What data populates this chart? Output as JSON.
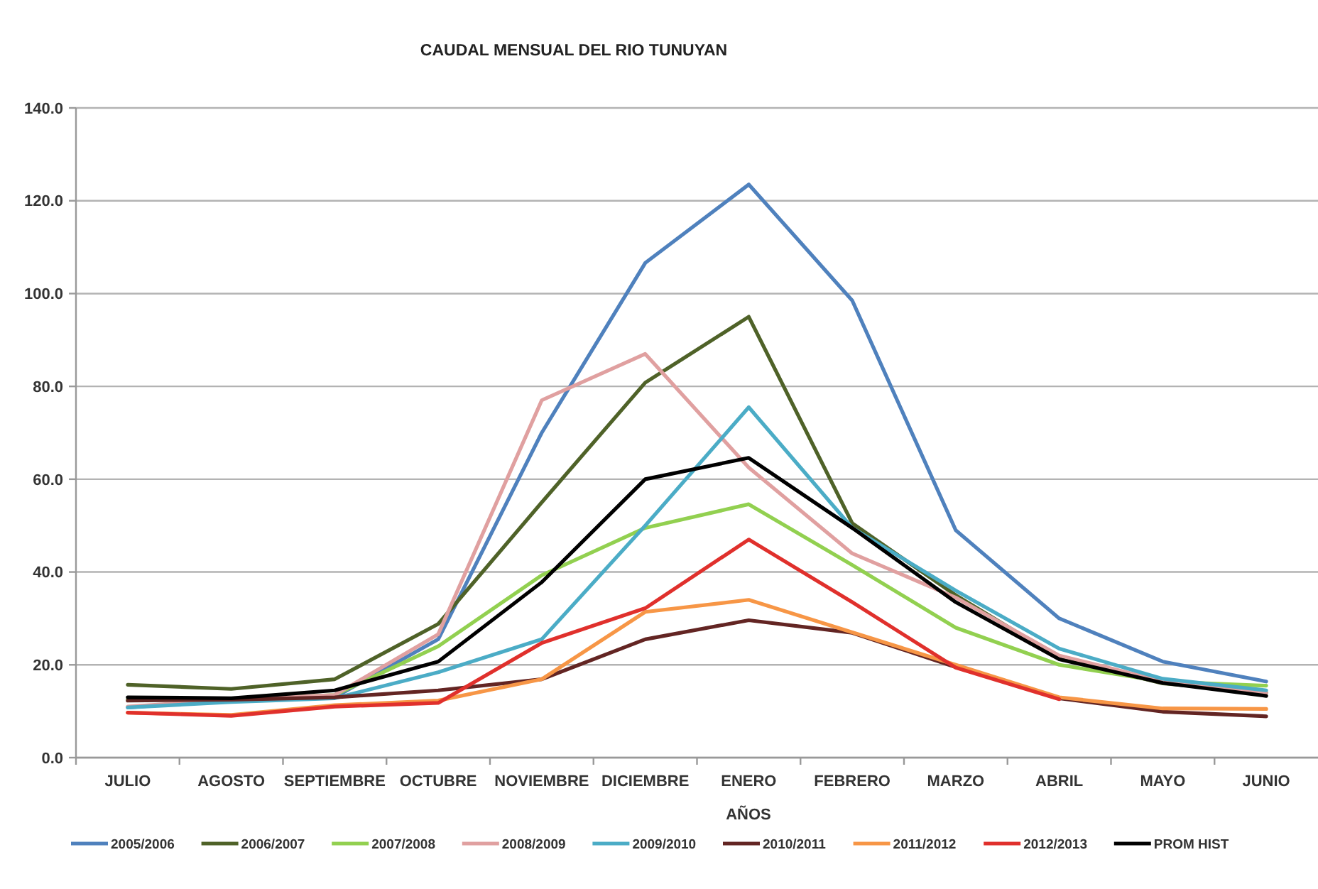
{
  "chart_data": {
    "type": "line",
    "title": "CAUDAL MENSUAL DEL RIO TUNUYAN",
    "xlabel": "AÑOS",
    "categories": [
      "JULIO",
      "AGOSTO",
      "SEPTIEMBRE",
      "OCTUBRE",
      "NOVIEMBRE",
      "DICIEMBRE",
      "ENERO",
      "FEBRERO",
      "MARZO",
      "ABRIL",
      "MAYO",
      "JUNIO"
    ],
    "series": [
      {
        "name": "2005/2006",
        "color": "#4f81bd",
        "values": [
          10.8,
          12.5,
          13,
          25.5,
          70,
          106.6,
          123.5,
          98.5,
          49,
          30,
          20.7,
          16.4
        ]
      },
      {
        "name": "2006/2007",
        "color": "#4f6228",
        "values": [
          15.7,
          14.8,
          16.9,
          28.8,
          55,
          80.8,
          95,
          50.5,
          35,
          21.5,
          16,
          14
        ]
      },
      {
        "name": "2007/2008",
        "color": "#92d050",
        "values": [
          12.5,
          12.5,
          13.5,
          24,
          39.3,
          49.5,
          54.6,
          41.5,
          28,
          20,
          16.4,
          15.5
        ]
      },
      {
        "name": "2008/2009",
        "color": "#e0a0a0",
        "values": [
          11,
          12.5,
          13.5,
          26.6,
          77,
          87,
          62.5,
          44,
          34.5,
          22,
          16.5,
          14
        ]
      },
      {
        "name": "2009/2010",
        "color": "#4bacc6",
        "values": [
          10.8,
          12,
          12.8,
          18.4,
          25.5,
          50,
          75.5,
          49.5,
          36,
          23.5,
          17,
          14.5
        ]
      },
      {
        "name": "2010/2011",
        "color": "#632523",
        "values": [
          12.3,
          12.5,
          13,
          14.5,
          16.9,
          25.5,
          29.6,
          26.9,
          19.5,
          12.8,
          9.9,
          8.9
        ]
      },
      {
        "name": "2011/2012",
        "color": "#f79646",
        "values": [
          9.7,
          9.2,
          11.3,
          12.3,
          16.9,
          31.4,
          34,
          27,
          20,
          13,
          10.6,
          10.5
        ]
      },
      {
        "name": "2012/2013",
        "color": "#e0302c",
        "values": [
          9.7,
          9,
          11,
          11.8,
          24.7,
          32.2,
          47,
          33.5,
          19.4,
          12.6,
          null,
          null
        ]
      },
      {
        "name": "PROM HIST",
        "color": "#000000",
        "values": [
          13,
          12.8,
          14.5,
          20.7,
          37.8,
          60,
          64.6,
          49.5,
          33.5,
          21.2,
          16.1,
          13.3
        ]
      }
    ],
    "ylim": [
      0,
      140
    ],
    "yticks": [
      {
        "value": 0,
        "label": "0.0"
      },
      {
        "value": 20,
        "label": "20.0"
      },
      {
        "value": 40,
        "label": "40.0"
      },
      {
        "value": 60,
        "label": "60.0"
      },
      {
        "value": 80,
        "label": "80.0"
      },
      {
        "value": 100,
        "label": "100.0"
      },
      {
        "value": 120,
        "label": "120.0"
      },
      {
        "value": 140,
        "label": "140.0"
      }
    ],
    "grid": "y",
    "legend": "bottom"
  }
}
